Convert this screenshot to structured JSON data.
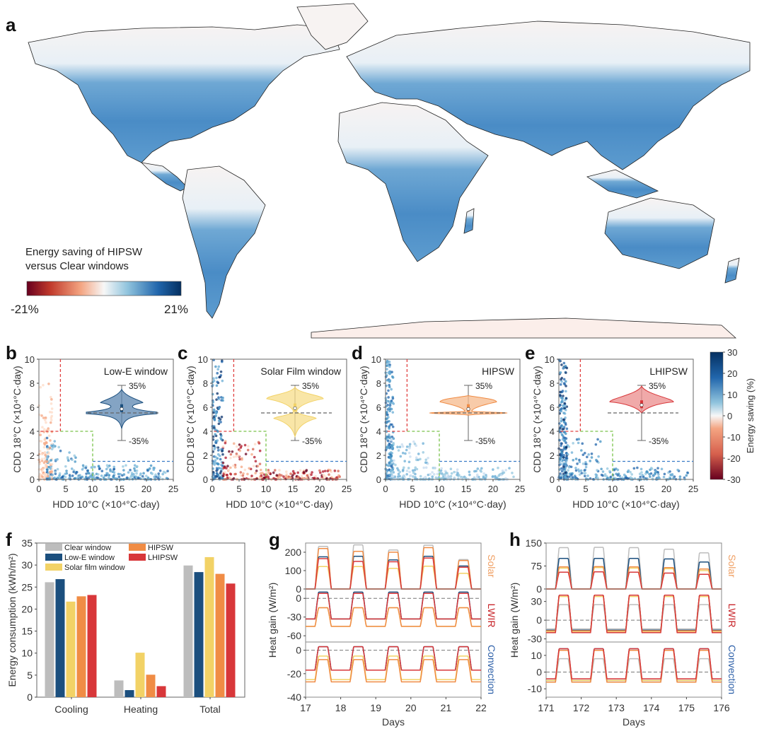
{
  "panels": {
    "a": "a",
    "b": "b",
    "c": "c",
    "d": "d",
    "e": "e",
    "f": "f",
    "g": "g",
    "h": "h"
  },
  "colors": {
    "clear": "#bdbdbd",
    "lowe": "#1b4f7e",
    "solar_film": "#f2d266",
    "hipsw": "#f08c45",
    "lhipsw": "#d8373a",
    "scatter_blue": "#2f7cc0",
    "scatter_red": "#d6604d",
    "ref_red": "#e04040",
    "ref_green": "#7ac24a",
    "ref_blue": "#3a7cc6",
    "solar_label": "#f0a064",
    "lwir_label": "#c8262b",
    "conv_label": "#2c5fa8"
  },
  "chart_data": [
    {
      "id": "a",
      "type": "heatmap",
      "title": "",
      "description": "World map of energy saving of HIPSW versus Clear windows",
      "colorbar": {
        "title_line1": "Energy saving of HIPSW",
        "title_line2": "versus Clear windows",
        "min_label": "-21%",
        "max_label": "21%",
        "range": [
          -21,
          21
        ],
        "colormap": "RdBu"
      }
    },
    {
      "id": "b",
      "type": "scatter",
      "title": "Low-E window",
      "xlabel": "HDD 10°C (×10⁴°C·day)",
      "ylabel": "CDD 18°C (×10⁴°C·day)",
      "xlim": [
        0,
        25
      ],
      "ylim": [
        0,
        10
      ],
      "xticks": [
        "0",
        "5",
        "10",
        "15",
        "20",
        "25"
      ],
      "yticks": [
        "0",
        "2",
        "4",
        "6",
        "8",
        "10"
      ],
      "ref_lines": {
        "red_x": 4,
        "red_y_top": 10,
        "green_x": 10,
        "green_y": 4,
        "blue_x": 10,
        "blue_y": 1.5
      },
      "violin": {
        "top_label": "35%",
        "bottom_label": "-35%",
        "median": 5,
        "dashed_ref": 0,
        "shape": "two-lobed"
      },
      "dominant": "blue"
    },
    {
      "id": "c",
      "type": "scatter",
      "title": "Solar Film window",
      "xlabel": "HDD 10°C (×10⁴°C·day)",
      "ylabel": "CDD 18°C (×10⁴°C·day)",
      "xlim": [
        0,
        25
      ],
      "ylim": [
        0,
        10
      ],
      "xticks": [
        "0",
        "5",
        "10",
        "15",
        "20",
        "25"
      ],
      "yticks": [
        "0",
        "2",
        "4",
        "6",
        "8",
        "10"
      ],
      "ref_lines": {
        "red_x": 4,
        "red_y_top": 10,
        "green_x": 10,
        "green_y": 4,
        "blue_x": 10,
        "blue_y": 1.5
      },
      "violin": {
        "top_label": "35%",
        "bottom_label": "-35%",
        "median": 6,
        "dashed_ref": 0,
        "shape": "bimodal"
      },
      "dominant": "mixed"
    },
    {
      "id": "d",
      "type": "scatter",
      "title": "HIPSW",
      "xlabel": "HDD 10°C (×10⁴°C·day)",
      "ylabel": "CDD 18°C (×10⁴°C·day)",
      "xlim": [
        0,
        25
      ],
      "ylim": [
        0,
        10
      ],
      "xticks": [
        "0",
        "5",
        "10",
        "15",
        "20",
        "25"
      ],
      "yticks": [
        "0",
        "2",
        "4",
        "6",
        "8",
        "10"
      ],
      "ref_lines": {
        "red_x": 4,
        "red_y_top": 10,
        "green_x": 10,
        "green_y": 4,
        "blue_x": 10,
        "blue_y": 1.5
      },
      "violin": {
        "top_label": "35%",
        "bottom_label": "-35%",
        "median": 5,
        "dashed_ref": 0,
        "shape": "upper"
      },
      "dominant": "light-blue"
    },
    {
      "id": "e",
      "type": "scatter",
      "title": "LHIPSW",
      "xlabel": "HDD 10°C (×10⁴°C·day)",
      "ylabel": "CDD 18°C (×10⁴°C·day)",
      "xlim": [
        0,
        25
      ],
      "ylim": [
        0,
        10
      ],
      "xticks": [
        "0",
        "5",
        "10",
        "15",
        "20",
        "25"
      ],
      "yticks": [
        "0",
        "2",
        "4",
        "6",
        "8",
        "10"
      ],
      "ref_lines": {
        "red_x": 4,
        "red_y_top": 10,
        "green_x": 10,
        "green_y": 4,
        "blue_x": 10,
        "blue_y": 1.5
      },
      "violin": {
        "top_label": "35%",
        "bottom_label": "-35%",
        "median": 10,
        "dashed_ref": 0,
        "shape": "upper"
      },
      "dominant": "blue"
    },
    {
      "id": "colorbar-right",
      "type": "heatmap",
      "label": "Energy saving (%)",
      "range": [
        -30,
        30
      ],
      "ticks": [
        "30",
        "20",
        "10",
        "0",
        "-10",
        "-20",
        "-30"
      ]
    },
    {
      "id": "f",
      "type": "bar",
      "ylabel": "Energy consumption (kWh/m²)",
      "ylim": [
        0,
        35
      ],
      "yticks": [
        "0",
        "5",
        "10",
        "15",
        "20",
        "25",
        "30",
        "35"
      ],
      "categories": [
        "Cooling",
        "Heating",
        "Total"
      ],
      "legend_position": "top-left",
      "series": [
        {
          "name": "Clear window",
          "values": [
            26.1,
            3.8,
            29.9
          ]
        },
        {
          "name": "Low-E window",
          "values": [
            26.8,
            1.6,
            28.4
          ]
        },
        {
          "name": "Solar film window",
          "values": [
            21.7,
            10.1,
            31.8
          ]
        },
        {
          "name": "HIPSW",
          "values": [
            22.9,
            5.1,
            28.0
          ]
        },
        {
          "name": "LHIPSW",
          "values": [
            23.2,
            2.5,
            25.8
          ]
        }
      ]
    },
    {
      "id": "g",
      "type": "line",
      "xlabel": "Days",
      "ylabel": "Heat gain (W/m²)",
      "xlim": [
        17,
        22
      ],
      "xticks": [
        "17",
        "18",
        "19",
        "20",
        "21",
        "22"
      ],
      "subplots": [
        {
          "label": "Solar",
          "ylim": [
            0,
            250
          ],
          "yticks": [
            "0",
            "100",
            "200"
          ],
          "peaks": {
            "Clear window": [
              232,
              240,
              212,
              238,
              160
            ],
            "Low-E window": [
              175,
              178,
              158,
              178,
              125
            ],
            "Solar film window": [
              122,
              122,
              112,
              124,
              85
            ],
            "HIPSW": [
              220,
              205,
              200,
              225,
              155
            ],
            "LHIPSW": [
              165,
              150,
              148,
              168,
              118
            ]
          }
        },
        {
          "label": "LWIR",
          "ylim": [
            -70,
            15
          ],
          "yticks": [
            "-60",
            "-30",
            "0"
          ],
          "dashed_ref": 0
        },
        {
          "label": "Convection",
          "ylim": [
            -40,
            7
          ],
          "yticks": [
            "-40",
            "-20",
            "0"
          ],
          "dashed_ref": 0
        }
      ]
    },
    {
      "id": "h",
      "type": "line",
      "xlabel": "Days",
      "ylabel": "Heat gain (W/m²)",
      "xlim": [
        171,
        176
      ],
      "xticks": [
        "171",
        "172",
        "173",
        "174",
        "175",
        "176"
      ],
      "subplots": [
        {
          "label": "Solar",
          "ylim": [
            0,
            150
          ],
          "yticks": [
            "0",
            "75",
            "150"
          ],
          "peaks": {
            "Clear window": [
              135,
              136,
              135,
              130,
              118
            ],
            "Low-E window": [
              100,
              100,
              100,
              98,
              88
            ],
            "Solar film window": [
              68,
              70,
              68,
              66,
              60
            ],
            "HIPSW": [
              72,
              73,
              72,
              70,
              65
            ],
            "LHIPSW": [
              55,
              56,
              55,
              52,
              48
            ]
          }
        },
        {
          "label": "LWIR",
          "ylim": [
            -35,
            50
          ],
          "yticks": [
            "-30",
            "0",
            "30"
          ],
          "dashed_ref": 0
        },
        {
          "label": "Convection",
          "ylim": [
            -15,
            18
          ],
          "yticks": [
            "-10",
            "0",
            "10"
          ],
          "dashed_ref": 0
        }
      ]
    }
  ]
}
